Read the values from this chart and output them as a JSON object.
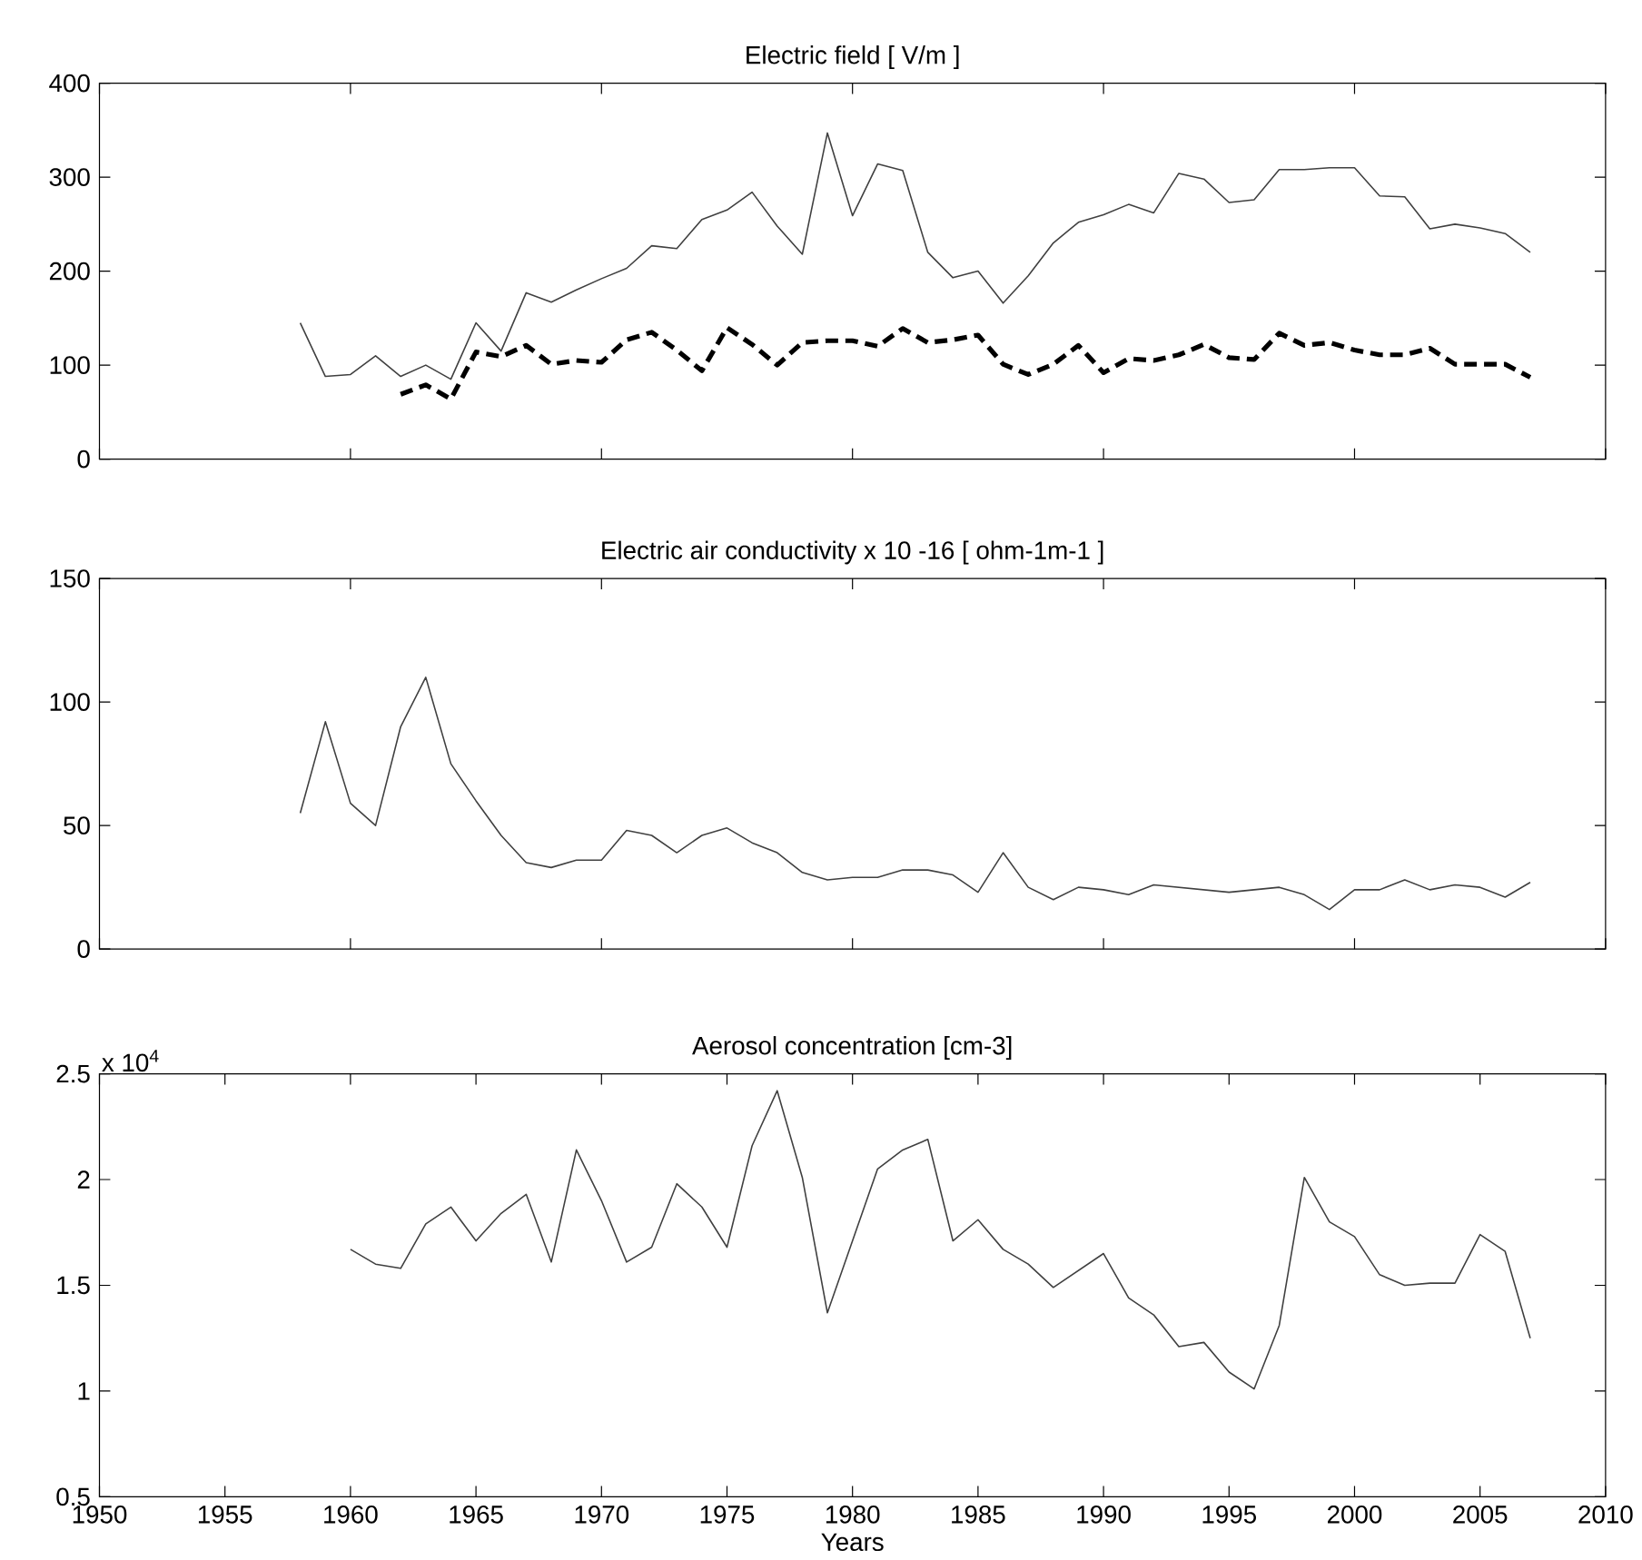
{
  "chart_data": [
    {
      "type": "line",
      "title": "Electric field  [ V/m ]",
      "x": [
        1958,
        1959,
        1960,
        1961,
        1962,
        1963,
        1964,
        1965,
        1966,
        1967,
        1968,
        1969,
        1970,
        1971,
        1972,
        1973,
        1974,
        1975,
        1976,
        1977,
        1978,
        1979,
        1980,
        1981,
        1982,
        1983,
        1984,
        1985,
        1986,
        1987,
        1988,
        1989,
        1990,
        1991,
        1992,
        1993,
        1994,
        1995,
        1996,
        1997,
        1998,
        1999,
        2000,
        2001,
        2002,
        2003,
        2004,
        2005,
        2006,
        2007
      ],
      "series": [
        {
          "color": "#404040",
          "line_style": "solid",
          "values": [
            145,
            88,
            90,
            110,
            88,
            100,
            85,
            145,
            115,
            177,
            167,
            180,
            192,
            203,
            227,
            224,
            255,
            265,
            284,
            248,
            218,
            347,
            259,
            314,
            307,
            220,
            193,
            200,
            166,
            195,
            230,
            252,
            260,
            271,
            262,
            304,
            298,
            273,
            276,
            308,
            308,
            310,
            310,
            280,
            279,
            245,
            250,
            246,
            240,
            220
          ]
        },
        {
          "color": "#000000",
          "line_style": "dashed",
          "values": [
            null,
            null,
            null,
            null,
            69,
            79,
            64,
            114,
            109,
            121,
            101,
            105,
            103,
            127,
            135,
            116,
            94,
            140,
            122,
            100,
            124,
            126,
            126,
            120,
            139,
            124,
            127,
            132,
            101,
            90,
            101,
            121,
            92,
            107,
            105,
            111,
            122,
            108,
            106,
            134,
            121,
            124,
            116,
            111,
            111,
            118,
            101,
            101,
            101,
            87
          ]
        }
      ],
      "xlim": [
        1950,
        2010
      ],
      "xticks": [
        1950,
        1960,
        1970,
        1980,
        1990,
        2000,
        2010
      ],
      "ylim": [
        0,
        400
      ],
      "yticks": [
        0,
        100,
        200,
        300,
        400
      ],
      "tick_labels": "y",
      "marker": "none",
      "grid": false
    },
    {
      "type": "line",
      "title": "Electric air conductivity   x 10 -16 [ ohm-1m-1 ]",
      "x": [
        1958,
        1959,
        1960,
        1961,
        1962,
        1963,
        1964,
        1965,
        1966,
        1967,
        1968,
        1969,
        1970,
        1971,
        1972,
        1973,
        1974,
        1975,
        1976,
        1977,
        1978,
        1979,
        1980,
        1981,
        1982,
        1983,
        1984,
        1985,
        1986,
        1987,
        1988,
        1989,
        1990,
        1991,
        1992,
        1993,
        1994,
        1995,
        1996,
        1997,
        1998,
        1999,
        2000,
        2001,
        2002,
        2003,
        2004,
        2005,
        2006,
        2007
      ],
      "series": [
        {
          "color": "#404040",
          "line_style": "solid",
          "values": [
            55,
            92,
            59,
            50,
            90,
            110,
            75,
            60,
            46,
            35,
            33,
            36,
            36,
            48,
            46,
            39,
            46,
            49,
            43,
            39,
            31,
            28,
            29,
            29,
            32,
            32,
            30,
            23,
            39,
            25,
            20,
            25,
            24,
            22,
            26,
            25,
            24,
            23,
            24,
            25,
            22,
            16,
            24,
            24,
            28,
            24,
            26,
            25,
            21,
            27
          ]
        }
      ],
      "xlim": [
        1950,
        2010
      ],
      "xticks": [
        1950,
        1960,
        1970,
        1980,
        1990,
        2000,
        2010
      ],
      "ylim": [
        0,
        150
      ],
      "yticks": [
        0,
        50,
        100,
        150
      ],
      "tick_labels": "y",
      "marker": "none",
      "grid": false
    },
    {
      "type": "line",
      "title": "Aerosol concentration  [cm-3]",
      "xlabel": "Years",
      "annotations": [
        "x 10$^{4}$"
      ],
      "x": [
        1960,
        1961,
        1962,
        1963,
        1964,
        1965,
        1966,
        1967,
        1968,
        1969,
        1970,
        1971,
        1972,
        1973,
        1974,
        1975,
        1976,
        1977,
        1978,
        1979,
        1980,
        1981,
        1982,
        1983,
        1984,
        1985,
        1986,
        1987,
        1988,
        1989,
        1990,
        1991,
        1992,
        1993,
        1994,
        1995,
        1996,
        1997,
        1998,
        1999,
        2000,
        2001,
        2002,
        2003,
        2004,
        2005,
        2006,
        2007
      ],
      "series": [
        {
          "color": "#404040",
          "line_style": "solid",
          "values": [
            1.67,
            1.6,
            1.58,
            1.79,
            1.87,
            1.71,
            1.84,
            1.93,
            1.61,
            2.14,
            1.9,
            1.61,
            1.68,
            1.98,
            1.87,
            1.68,
            2.16,
            2.42,
            2.01,
            1.37,
            1.71,
            2.05,
            2.14,
            2.19,
            1.71,
            1.81,
            1.67,
            1.6,
            1.49,
            1.57,
            1.65,
            1.44,
            1.36,
            1.21,
            1.23,
            1.09,
            1.01,
            1.31,
            2.01,
            1.8,
            1.73,
            1.55,
            1.5,
            1.51,
            1.51,
            1.74,
            1.66,
            1.25
          ]
        }
      ],
      "xlim": [
        1950,
        2010
      ],
      "xticks": [
        1950,
        1955,
        1960,
        1965,
        1970,
        1975,
        1980,
        1985,
        1990,
        1995,
        2000,
        2005,
        2010
      ],
      "ylim": [
        0.5,
        2.5
      ],
      "yticks": [
        0.5,
        1,
        1.5,
        2,
        2.5
      ],
      "marker": "none",
      "grid": false
    }
  ]
}
